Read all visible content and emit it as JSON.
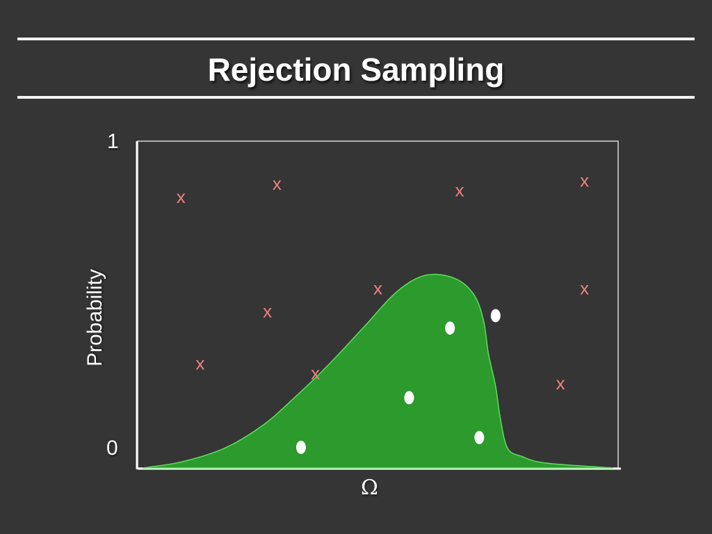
{
  "slide": {
    "title": "Rejection Sampling"
  },
  "chart_data": {
    "type": "scatter",
    "title": "Rejection Sampling",
    "xlabel": "Ω",
    "ylabel": "Probability",
    "ylim": [
      0,
      1
    ],
    "y_ticks": [
      "0",
      "1"
    ],
    "grid": false,
    "colors": {
      "density_fill": "#2c9a2c",
      "density_edge": "#5ee05e",
      "accepted": "#ffffff",
      "rejected": "#ee8080",
      "axes": "#ffffff"
    },
    "density_curve": [
      [
        0.01,
        0.0
      ],
      [
        0.09,
        0.018
      ],
      [
        0.18,
        0.06
      ],
      [
        0.26,
        0.13
      ],
      [
        0.33,
        0.22
      ],
      [
        0.4,
        0.32
      ],
      [
        0.47,
        0.43
      ],
      [
        0.54,
        0.54
      ],
      [
        0.6,
        0.59
      ],
      [
        0.66,
        0.58
      ],
      [
        0.7,
        0.53
      ],
      [
        0.72,
        0.45
      ],
      [
        0.73,
        0.35
      ],
      [
        0.745,
        0.25
      ],
      [
        0.755,
        0.15
      ],
      [
        0.77,
        0.06
      ],
      [
        0.8,
        0.035
      ],
      [
        0.85,
        0.015
      ],
      [
        0.99,
        0.0
      ]
    ],
    "series": [
      {
        "marker": "dot",
        "points": [
          [
            0.34,
            0.063
          ],
          [
            0.565,
            0.215
          ],
          [
            0.65,
            0.428
          ],
          [
            0.745,
            0.466
          ],
          [
            0.711,
            0.093
          ]
        ]
      },
      {
        "marker": "x",
        "label": "x",
        "points": [
          [
            0.09,
            0.83
          ],
          [
            0.29,
            0.87
          ],
          [
            0.67,
            0.85
          ],
          [
            0.93,
            0.88
          ],
          [
            0.5,
            0.55
          ],
          [
            0.93,
            0.55
          ],
          [
            0.27,
            0.48
          ],
          [
            0.13,
            0.32
          ],
          [
            0.37,
            0.29
          ],
          [
            0.88,
            0.26
          ]
        ]
      }
    ]
  }
}
